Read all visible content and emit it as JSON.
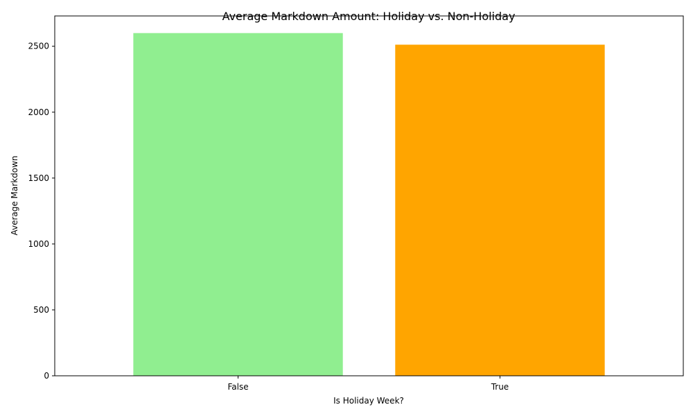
{
  "chart_data": {
    "type": "bar",
    "title": "Average Markdown Amount: Holiday vs. Non-Holiday",
    "xlabel": "Is Holiday Week?",
    "ylabel": "Average Markdown",
    "categories": [
      "False",
      "True"
    ],
    "values": [
      2600,
      2512
    ],
    "colors": [
      "#90ee90",
      "#ffa500"
    ],
    "ylim": [
      0,
      2730
    ],
    "yticks": [
      0,
      500,
      1000,
      1500,
      2000,
      2500
    ],
    "grid": false,
    "legend": "none"
  }
}
